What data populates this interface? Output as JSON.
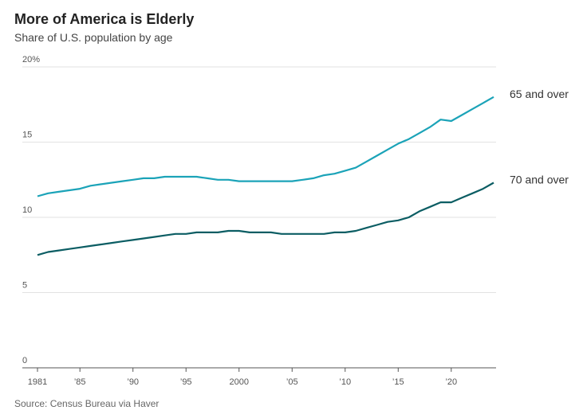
{
  "chart_data": {
    "type": "line",
    "title": "More of America is Elderly",
    "subtitle": "Share of U.S. population by age",
    "source": "Source: Census Bureau via Haver",
    "x": [
      1981,
      1982,
      1983,
      1984,
      1985,
      1986,
      1987,
      1988,
      1989,
      1990,
      1991,
      1992,
      1993,
      1994,
      1995,
      1996,
      1997,
      1998,
      1999,
      2000,
      2001,
      2002,
      2003,
      2004,
      2005,
      2006,
      2007,
      2008,
      2009,
      2010,
      2011,
      2012,
      2013,
      2014,
      2015,
      2016,
      2017,
      2018,
      2019,
      2020,
      2021,
      2022,
      2023,
      2024
    ],
    "series": [
      {
        "name": "65 and over",
        "color": "#1ba3b8",
        "values": [
          11.4,
          11.6,
          11.7,
          11.8,
          11.9,
          12.1,
          12.2,
          12.3,
          12.4,
          12.5,
          12.6,
          12.6,
          12.7,
          12.7,
          12.7,
          12.7,
          12.6,
          12.5,
          12.5,
          12.4,
          12.4,
          12.4,
          12.4,
          12.4,
          12.4,
          12.5,
          12.6,
          12.8,
          12.9,
          13.1,
          13.3,
          13.7,
          14.1,
          14.5,
          14.9,
          15.2,
          15.6,
          16.0,
          16.5,
          16.4,
          16.8,
          17.2,
          17.6,
          18.0
        ]
      },
      {
        "name": "70 and over",
        "color": "#0b5d63",
        "values": [
          7.5,
          7.7,
          7.8,
          7.9,
          8.0,
          8.1,
          8.2,
          8.3,
          8.4,
          8.5,
          8.6,
          8.7,
          8.8,
          8.9,
          8.9,
          9.0,
          9.0,
          9.0,
          9.1,
          9.1,
          9.0,
          9.0,
          9.0,
          8.9,
          8.9,
          8.9,
          8.9,
          8.9,
          9.0,
          9.0,
          9.1,
          9.3,
          9.5,
          9.7,
          9.8,
          10.0,
          10.4,
          10.7,
          11.0,
          11.0,
          11.3,
          11.6,
          11.9,
          12.3
        ]
      }
    ],
    "xlim": [
      1981,
      2024
    ],
    "xticks": [
      1981,
      {
        "value": 1985,
        "label": "’85"
      },
      {
        "value": 1990,
        "label": "’90"
      },
      {
        "value": 1995,
        "label": "’95"
      },
      2000,
      {
        "value": 2005,
        "label": "’05"
      },
      {
        "value": 2010,
        "label": "’10"
      },
      {
        "value": 2015,
        "label": "’15"
      },
      {
        "value": 2020,
        "label": "’20"
      }
    ],
    "ylim": [
      0,
      20
    ],
    "yticks": [
      0,
      5,
      10,
      15,
      {
        "value": 20,
        "label": "20%"
      }
    ],
    "grid": true
  }
}
